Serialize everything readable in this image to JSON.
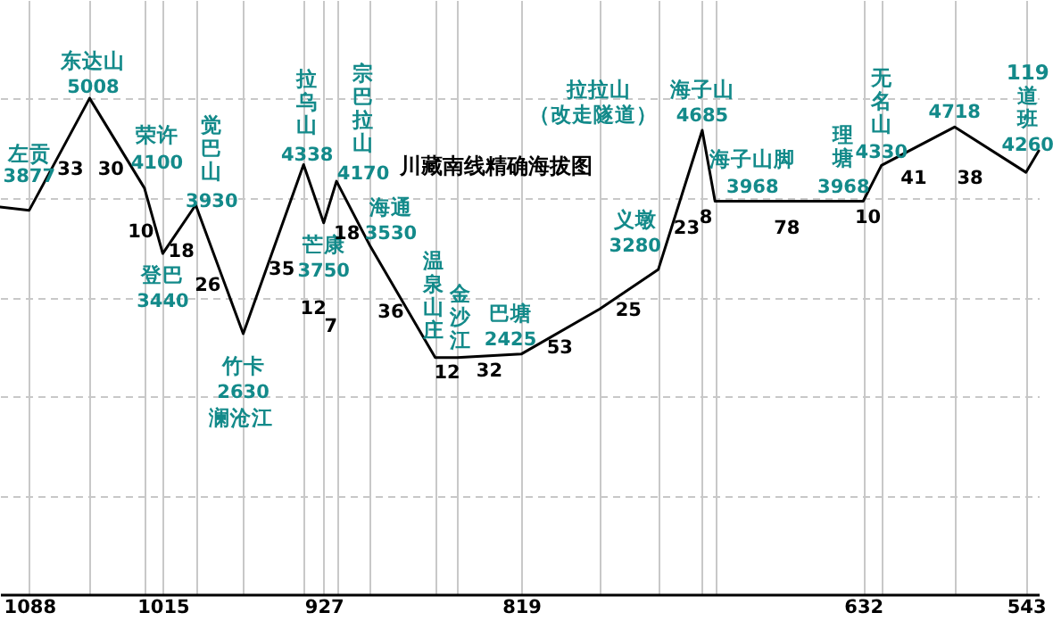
{
  "chart_data": {
    "type": "line",
    "title": "川藏南线精确海拔图",
    "x": [
      1104,
      1088,
      1055,
      1025,
      1015,
      997,
      971,
      938,
      927,
      920,
      902,
      866,
      854,
      819,
      776,
      744,
      720,
      713,
      632,
      622,
      582,
      543,
      536
    ],
    "series": [
      {
        "color": "#000000",
        "values": [
          3910,
          3877,
          5008,
          4100,
          3440,
          3930,
          2630,
          4338,
          3750,
          4170,
          3530,
          2390,
          2390,
          2425,
          2880,
          3280,
          4685,
          3968,
          3968,
          4330,
          4718,
          4260,
          4478
        ],
        "value_labels": [
          null,
          "3877",
          "5008",
          "4100",
          "3440",
          "3930",
          "2630",
          "4338",
          "3750",
          "4170",
          "3530",
          null,
          null,
          "2425",
          null,
          "3280",
          "4685",
          "3968",
          "3968",
          "4330",
          "4718",
          "4260",
          null
        ]
      }
    ],
    "xlim": [
      1104,
      536
    ],
    "xticks": [
      1088,
      {
        "value": 1055,
        "label": null
      },
      {
        "value": 1025,
        "label": null
      },
      1015,
      {
        "value": 997,
        "label": null
      },
      {
        "value": 971,
        "label": null
      },
      {
        "value": 938,
        "label": null
      },
      927,
      {
        "value": 920,
        "label": null
      },
      {
        "value": 902,
        "label": null
      },
      {
        "value": 866,
        "label": null
      },
      {
        "value": 854,
        "label": null
      },
      819,
      {
        "value": 776,
        "label": null
      },
      {
        "value": 744,
        "label": null
      },
      {
        "value": 720,
        "label": null
      },
      {
        "value": 713,
        "label": null
      },
      632,
      {
        "value": 622,
        "label": null
      },
      {
        "value": 582,
        "label": null
      },
      543
    ],
    "ylim": [
      0,
      6000
    ],
    "yticks": [
      {
        "value": 1000,
        "label": null
      },
      {
        "value": 2000,
        "label": null
      },
      {
        "value": 3000,
        "label": null
      },
      {
        "value": 4000,
        "label": null
      },
      {
        "value": 5000,
        "label": null
      }
    ],
    "grid": true,
    "annotations": [
      {
        "text": "左贡",
        "x": 1088,
        "y": 3877
      },
      {
        "text": "东达山",
        "x": 1055,
        "y": 5008
      },
      {
        "text": "荣许",
        "x": 1025,
        "y": 4100
      },
      {
        "text": "登巴",
        "x": 1015,
        "y": 3440
      },
      {
        "text": "觉巴山",
        "x": 997,
        "y": 3930
      },
      {
        "text": "竹卡",
        "x": 971,
        "y": 2630
      },
      {
        "text": "拉乌山",
        "x": 938,
        "y": 4338
      },
      {
        "text": "芒康",
        "x": 927,
        "y": 3750
      },
      {
        "text": "宗巴拉山",
        "x": 920,
        "y": 4170
      },
      {
        "text": "海通",
        "x": 902,
        "y": 3530
      },
      {
        "text": "温泉山庄",
        "x": 866,
        "y": 2390
      },
      {
        "text": "金沙江",
        "x": 854,
        "y": 2390
      },
      {
        "text": "巴塘",
        "x": 819,
        "y": 2425
      },
      {
        "text": "义墩",
        "x": 744,
        "y": 3280
      },
      {
        "text": "海子山",
        "x": 720,
        "y": 4685
      },
      {
        "text": "海子山脚",
        "x": 713,
        "y": 3968
      },
      {
        "text": "理塘",
        "x": 632,
        "y": 3968
      },
      {
        "text": "无名山",
        "x": 622,
        "y": 4330
      },
      {
        "text": "119道班",
        "x": 543,
        "y": 4260
      },
      "澜沧江",
      "拉拉山",
      "（改走隧道）",
      "33",
      "30",
      "10",
      "18",
      "26",
      "35",
      "12",
      "7",
      "18",
      "36",
      "12",
      "32",
      "53",
      "25",
      "23",
      "8",
      "78",
      "10",
      "41",
      "38"
    ]
  }
}
